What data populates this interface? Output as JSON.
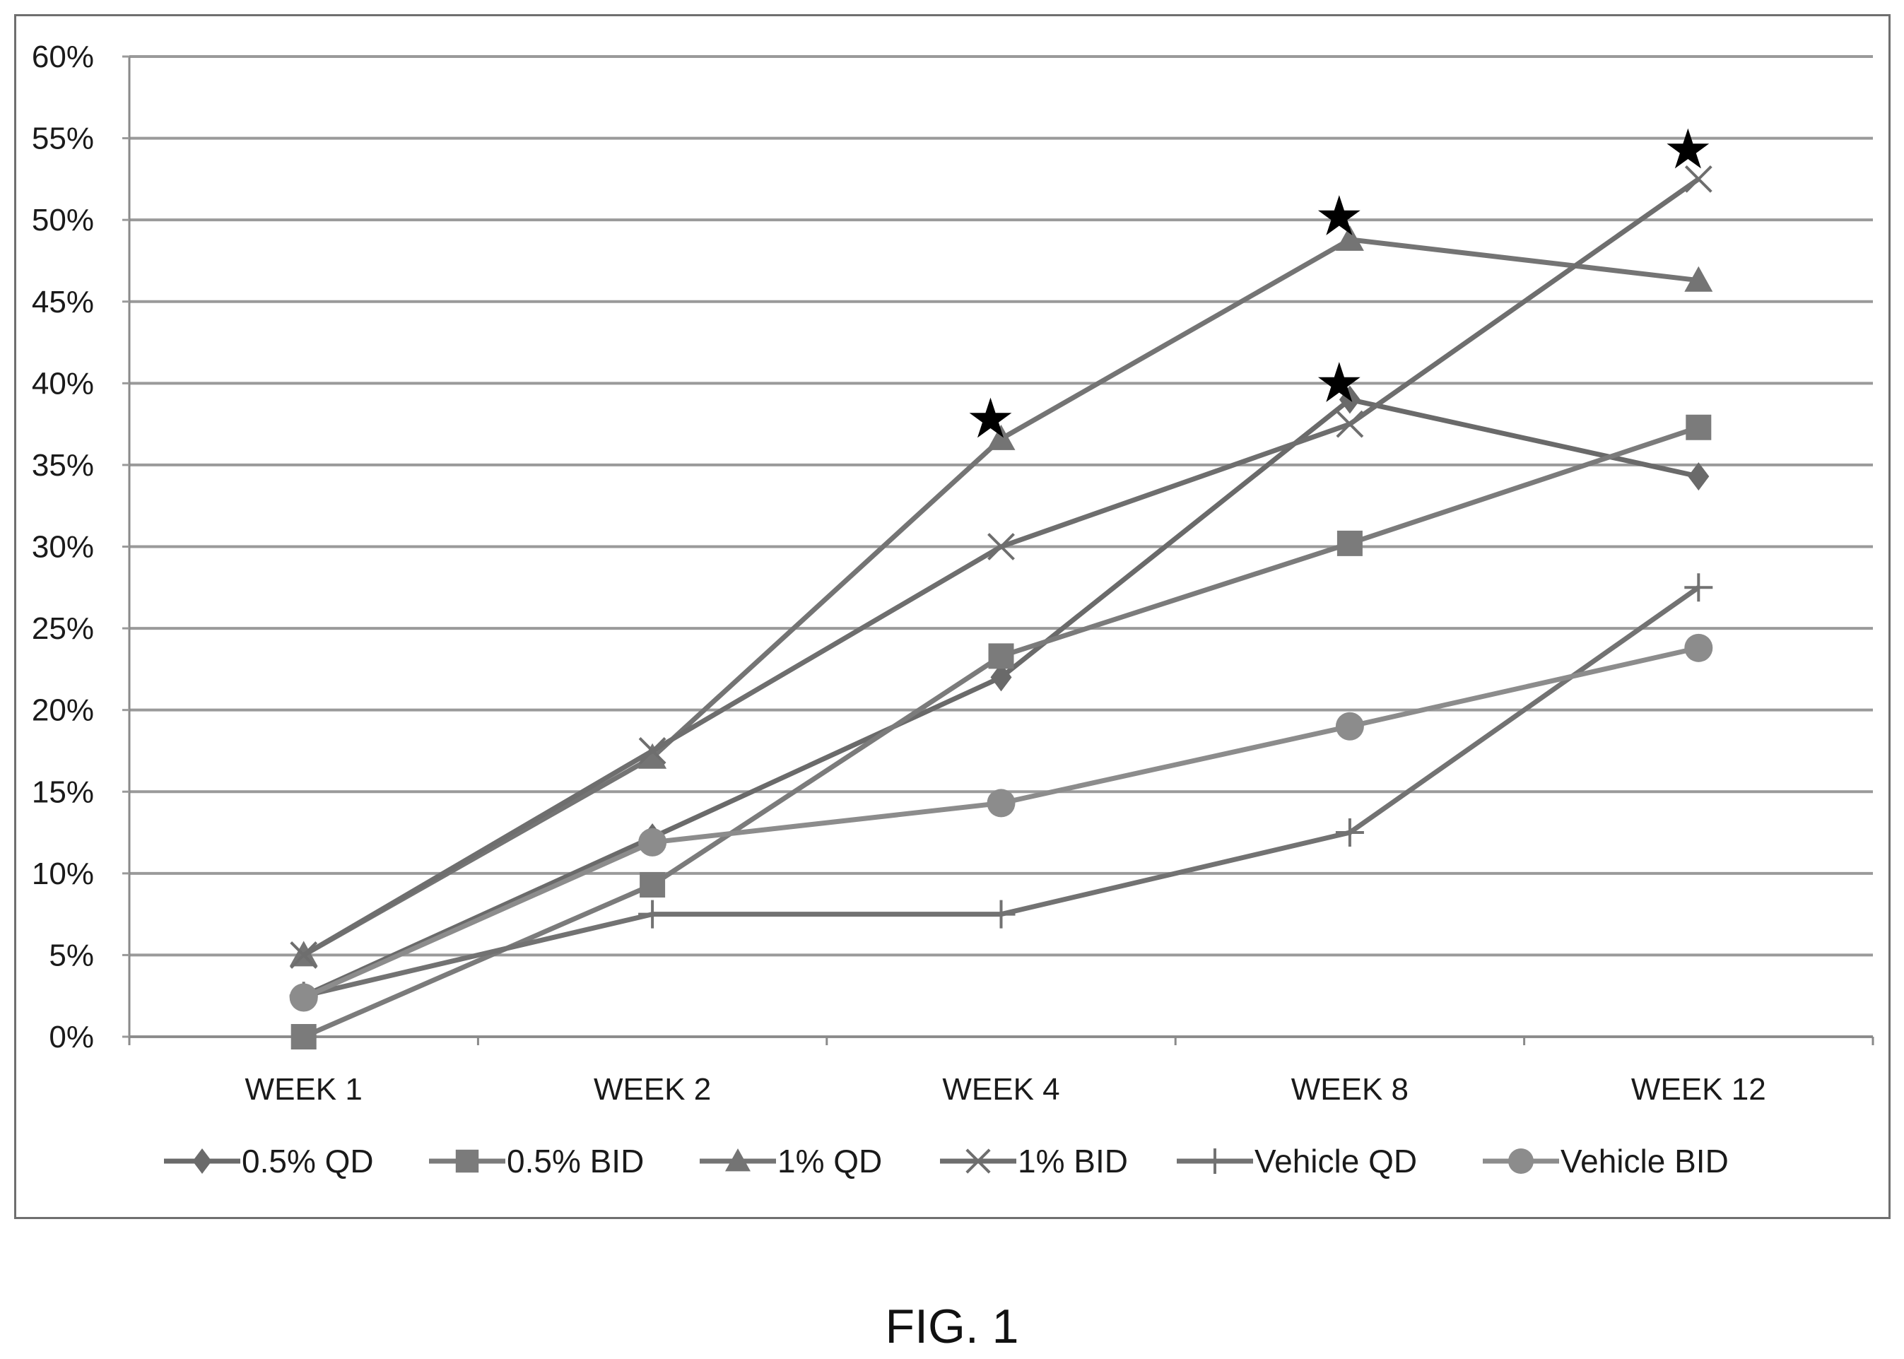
{
  "chart_data": {
    "type": "line",
    "categories": [
      "WEEK 1",
      "WEEK 2",
      "WEEK 4",
      "WEEK 8",
      "WEEK 12"
    ],
    "y_ticks": [
      "0%",
      "5%",
      "10%",
      "15%",
      "20%",
      "25%",
      "30%",
      "35%",
      "40%",
      "45%",
      "50%",
      "55%",
      "60%"
    ],
    "ylim": [
      0,
      60
    ],
    "grid": true,
    "legend_position": "bottom",
    "series": [
      {
        "name": "0.5% QD",
        "marker": "diamond",
        "color": "#6a6a6a",
        "values": [
          2.5,
          12.2,
          22.0,
          39.0,
          34.3
        ]
      },
      {
        "name": "0.5% BID",
        "marker": "square",
        "color": "#7b7b7b",
        "values": [
          0.0,
          9.3,
          23.3,
          30.2,
          37.3
        ]
      },
      {
        "name": "1% QD",
        "marker": "triangle",
        "color": "#747474",
        "values": [
          5.0,
          17.1,
          36.6,
          48.8,
          46.3
        ]
      },
      {
        "name": "1% BID",
        "marker": "x",
        "color": "#6e6e6e",
        "values": [
          5.0,
          17.5,
          30.0,
          37.5,
          52.5
        ]
      },
      {
        "name": "Vehicle QD",
        "marker": "plus",
        "color": "#727272",
        "values": [
          2.5,
          7.5,
          7.5,
          12.5,
          27.5
        ]
      },
      {
        "name": "Vehicle BID",
        "marker": "circle",
        "color": "#8c8c8c",
        "values": [
          2.4,
          11.9,
          14.3,
          19.0,
          23.8
        ]
      }
    ],
    "significance_markers": [
      {
        "category": "WEEK 4",
        "value": 37.8,
        "symbol": "★"
      },
      {
        "category": "WEEK 8",
        "value": 50.2,
        "symbol": "★"
      },
      {
        "category": "WEEK 8",
        "value": 40.0,
        "symbol": "★"
      },
      {
        "category": "WEEK 12",
        "value": 54.3,
        "symbol": "★"
      }
    ]
  },
  "caption": "FIG. 1"
}
